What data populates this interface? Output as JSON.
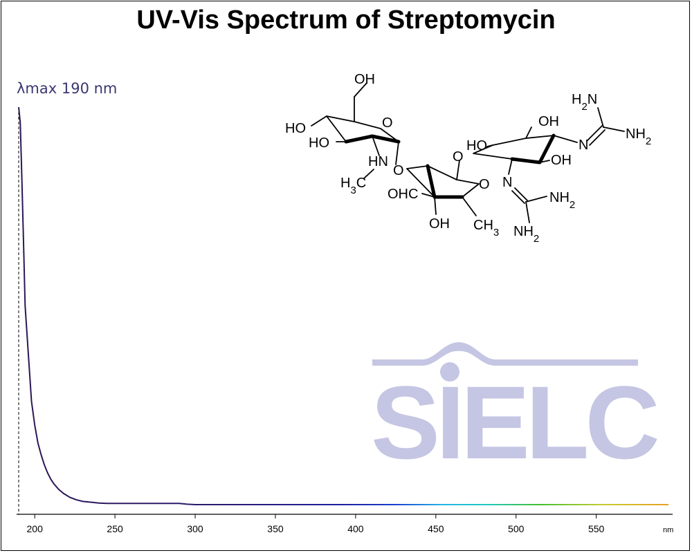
{
  "chart_data": {
    "type": "line",
    "title": "UV-Vis Spectrum of Streptomycin",
    "annotation": "λmax  190 nm",
    "lambda_max": 190,
    "x_unit": "nm",
    "xlim": [
      190,
      595
    ],
    "ylim": [
      0,
      1
    ],
    "x_ticks": [
      200,
      250,
      300,
      350,
      400,
      450,
      500,
      550
    ],
    "grid": false,
    "series": [
      {
        "x": [
          190,
          191,
          192,
          193,
          194,
          195,
          196,
          197,
          198,
          200,
          202,
          204,
          206,
          208,
          210,
          212,
          215,
          218,
          222,
          226,
          230,
          235,
          240,
          245,
          250,
          260,
          270,
          280,
          290,
          295,
          300,
          320,
          340,
          350,
          360,
          380,
          400,
          420,
          440,
          460,
          480,
          500,
          520,
          540,
          560,
          580,
          595
        ],
        "y": [
          1.0,
          0.96,
          0.82,
          0.66,
          0.5,
          0.44,
          0.38,
          0.32,
          0.26,
          0.2,
          0.155,
          0.125,
          0.1,
          0.08,
          0.064,
          0.052,
          0.038,
          0.028,
          0.018,
          0.012,
          0.008,
          0.006,
          0.004,
          0.003,
          0.003,
          0.003,
          0.003,
          0.003,
          0.003,
          0.001,
          0.0,
          0.0,
          0.0,
          0.0,
          0.0,
          0.0,
          0.0,
          0.0,
          0.0,
          0.0,
          0.0,
          0.0,
          0.0,
          0.0,
          0.0,
          0.0,
          0.0
        ]
      }
    ]
  },
  "structure": {
    "labels": [
      "OH",
      "HO",
      "HO",
      "HN",
      "H3C",
      "O",
      "O",
      "O",
      "OHC",
      "OH",
      "O",
      "CH3",
      "HO",
      "OH",
      "OH",
      "N",
      "H2N",
      "NH2",
      "N",
      "NH2",
      "NH2"
    ]
  },
  "watermark": {
    "text": "SIELC",
    "color": "#c5c6e3"
  }
}
